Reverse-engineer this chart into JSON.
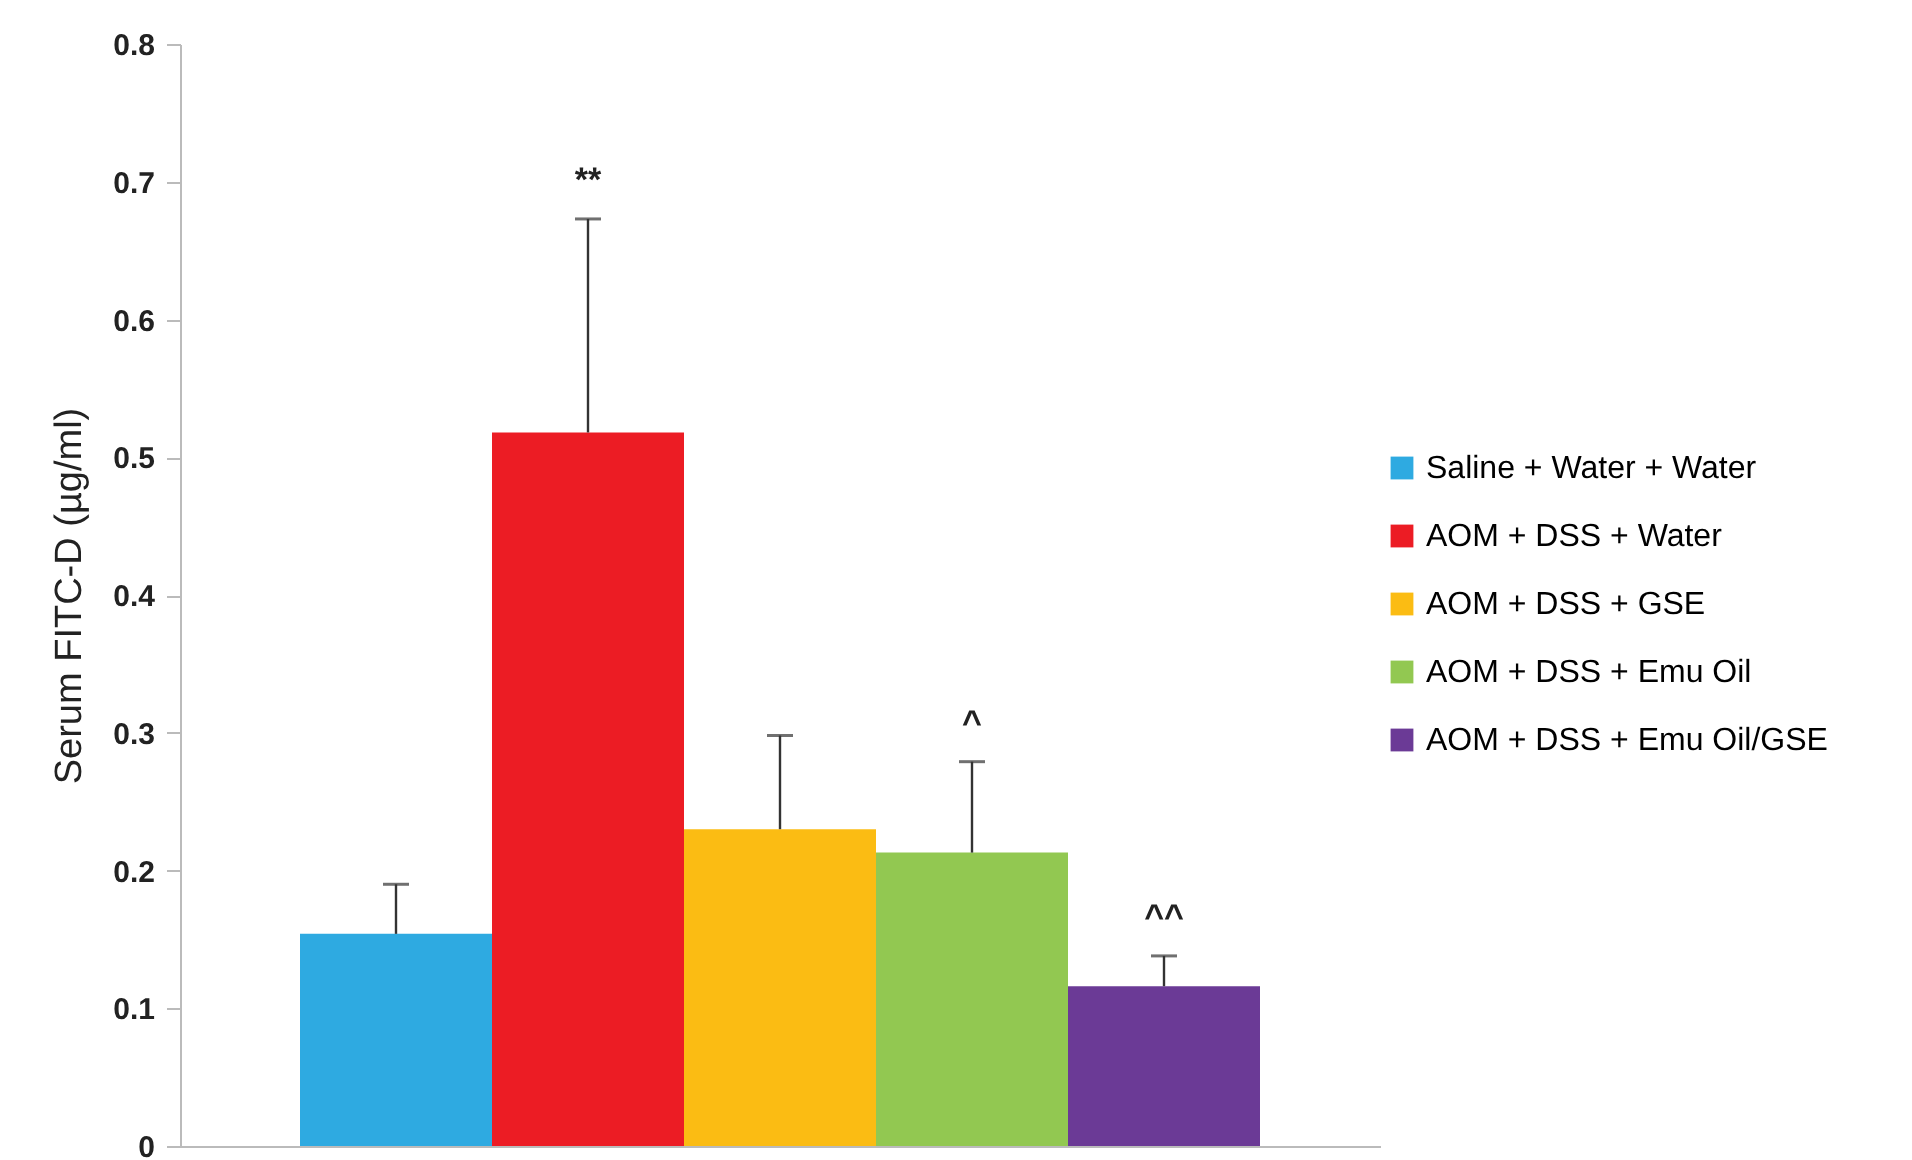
{
  "chart_data": {
    "type": "bar",
    "ylabel": "Serum FITC-D (µg/ml)",
    "categories": [
      null
    ],
    "series": [
      {
        "name": "Saline + Water + Water",
        "color": "#2eaae1",
        "values": [
          0.154
        ],
        "errors": [
          [
            0.154,
            0.19
          ]
        ]
      },
      {
        "name": "AOM + DSS + Water",
        "color": "#ec1c24",
        "values": [
          0.518
        ],
        "errors": [
          [
            0.518,
            0.673
          ]
        ]
      },
      {
        "name": "AOM + DSS + GSE",
        "color": "#fbbc13",
        "values": [
          0.23
        ],
        "errors": [
          [
            0.23,
            0.298
          ]
        ]
      },
      {
        "name": "AOM + DSS + Emu Oil",
        "color": "#92c851",
        "values": [
          0.213
        ],
        "errors": [
          [
            0.213,
            0.279
          ]
        ]
      },
      {
        "name": "AOM + DSS + Emu Oil/GSE",
        "color": "#6b3a96",
        "values": [
          0.116
        ],
        "errors": [
          [
            0.116,
            0.138
          ]
        ]
      }
    ],
    "annotations": [
      {
        "text": "**",
        "y": 0.673
      },
      {
        "text": "^",
        "y": 0.279
      },
      {
        "text": "^^",
        "y": 0.138
      }
    ],
    "ylim": [
      0,
      0.8
    ],
    "yticks": [
      0,
      0.1,
      0.2,
      0.3,
      0.4,
      0.5,
      0.6,
      0.7,
      0.8
    ],
    "tick_labels": "y",
    "grid": false,
    "legend": "right"
  }
}
